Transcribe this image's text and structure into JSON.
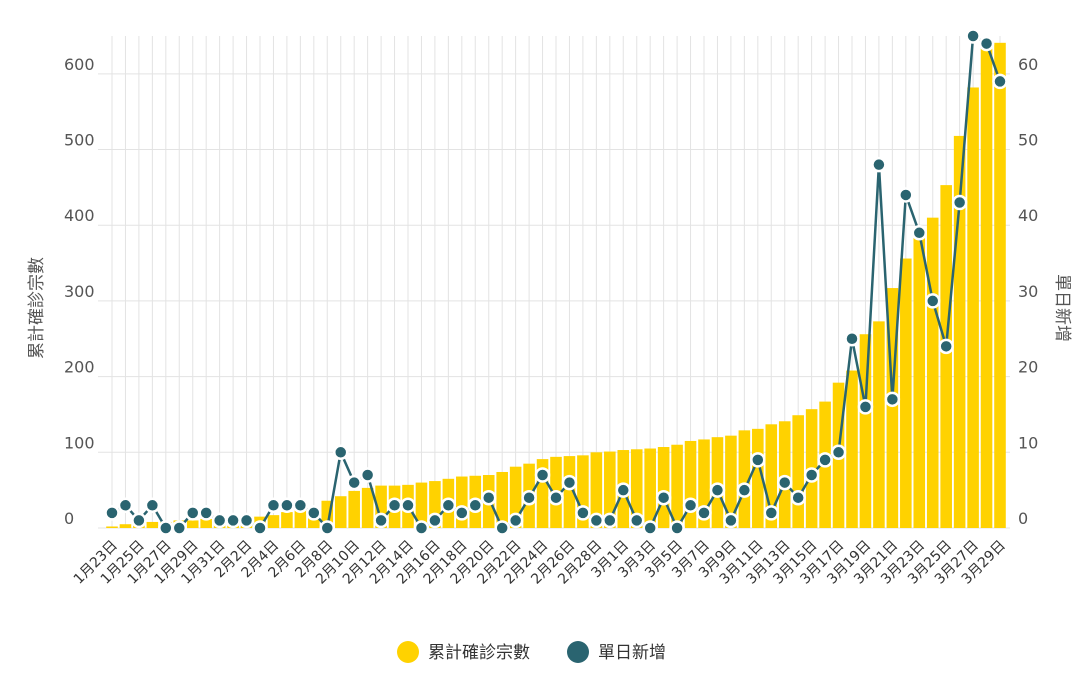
{
  "chart_data": {
    "type": "bar+line",
    "title": "",
    "ylabel_left": "累計確診宗數",
    "ylabel_right": "單日新增",
    "ylim_left": [
      0,
      650
    ],
    "ylim_right": [
      0,
      65
    ],
    "yticks_left": [
      0,
      100,
      200,
      300,
      400,
      500,
      600
    ],
    "yticks_right": [
      0,
      10,
      20,
      30,
      40,
      50,
      60
    ],
    "grid": true,
    "legend_position": "bottom-center",
    "colors": {
      "bars": "#FFD200",
      "line": "#2A6470",
      "grid": "#E3E3E3"
    },
    "categories": [
      "1月23日",
      "1月24日",
      "1月25日",
      "1月26日",
      "1月27日",
      "1月28日",
      "1月29日",
      "1月30日",
      "1月31日",
      "2月1日",
      "2月2日",
      "2月3日",
      "2月4日",
      "2月5日",
      "2月6日",
      "2月7日",
      "2月8日",
      "2月9日",
      "2月10日",
      "2月11日",
      "2月12日",
      "2月13日",
      "2月14日",
      "2月15日",
      "2月16日",
      "2月17日",
      "2月18日",
      "2月19日",
      "2月20日",
      "2月21日",
      "2月22日",
      "2月23日",
      "2月24日",
      "2月25日",
      "2月26日",
      "2月27日",
      "2月28日",
      "2月29日",
      "3月1日",
      "3月2日",
      "3月3日",
      "3月4日",
      "3月5日",
      "3月6日",
      "3月7日",
      "3月8日",
      "3月9日",
      "3月10日",
      "3月11日",
      "3月12日",
      "3月13日",
      "3月14日",
      "3月15日",
      "3月16日",
      "3月17日",
      "3月18日",
      "3月19日",
      "3月20日",
      "3月21日",
      "3月22日",
      "3月23日",
      "3月24日",
      "3月25日",
      "3月26日",
      "3月27日",
      "3月28日",
      "3月29日"
    ],
    "xtick_labels": [
      "1月23日",
      "1月25日",
      "1月27日",
      "1月29日",
      "1月31日",
      "2月2日",
      "2月4日",
      "2月6日",
      "2月8日",
      "2月10日",
      "2月12日",
      "2月14日",
      "2月16日",
      "2月18日",
      "2月20日",
      "2月22日",
      "2月24日",
      "2月26日",
      "2月28日",
      "3月1日",
      "3月3日",
      "3月5日",
      "3月7日",
      "3月9日",
      "3月11日",
      "3月13日",
      "3月15日",
      "3月17日",
      "3月19日",
      "3月21日",
      "3月23日",
      "3月25日",
      "3月27日",
      "3月29日"
    ],
    "series": [
      {
        "name": "累計確診宗數",
        "type": "bar",
        "axis": "left",
        "values": [
          2,
          5,
          8,
          8,
          8,
          10,
          10,
          12,
          13,
          14,
          15,
          15,
          17,
          21,
          24,
          26,
          36,
          42,
          49,
          53,
          56,
          56,
          57,
          60,
          62,
          65,
          68,
          69,
          70,
          74,
          81,
          85,
          91,
          94,
          95,
          96,
          100,
          101,
          103,
          104,
          105,
          107,
          110,
          115,
          117,
          120,
          122,
          129,
          131,
          137,
          141,
          149,
          157,
          167,
          192,
          208,
          256,
          273,
          317,
          356,
          386,
          410,
          453,
          518,
          582,
          641,
          641
        ]
      },
      {
        "name": "單日新增",
        "type": "line",
        "axis": "right",
        "values": [
          2,
          3,
          1,
          3,
          0,
          0,
          2,
          2,
          1,
          1,
          1,
          0,
          3,
          3,
          3,
          2,
          0,
          10,
          6,
          7,
          1,
          3,
          3,
          0,
          1,
          3,
          2,
          3,
          4,
          0,
          1,
          4,
          7,
          4,
          6,
          2,
          1,
          1,
          5,
          1,
          0,
          4,
          0,
          3,
          2,
          5,
          1,
          5,
          9,
          2,
          6,
          4,
          7,
          9,
          10,
          25,
          16,
          48,
          17,
          44,
          39,
          30,
          24,
          43,
          65,
          64,
          59
        ]
      }
    ]
  }
}
